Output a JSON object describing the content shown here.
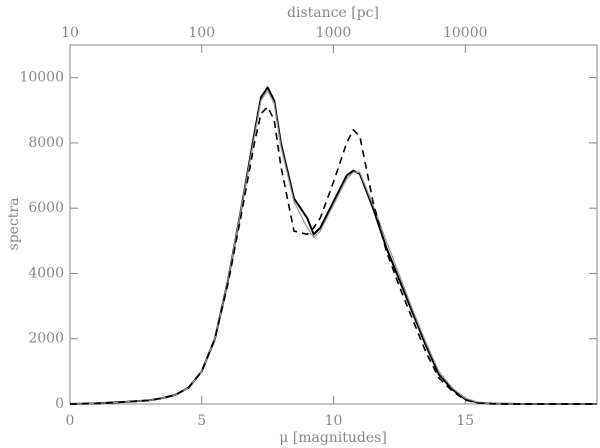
{
  "chart_data": {
    "type": "line",
    "xlabel": "μ  [magnitudes]",
    "ylabel": "spectra",
    "x2label": "distance [pc]",
    "x": [
      0,
      1,
      2,
      3,
      3.5,
      4,
      4.5,
      5,
      5.5,
      6,
      6.5,
      7,
      7.25,
      7.5,
      7.75,
      8,
      8.5,
      9,
      9.25,
      9.5,
      10,
      10.5,
      10.75,
      11,
      11.5,
      12,
      12.5,
      13,
      13.5,
      14,
      14.5,
      15,
      15.5,
      16,
      17,
      18,
      19,
      20
    ],
    "series": [
      {
        "color": "#000000",
        "width": 2,
        "dashed": false,
        "values": [
          0,
          20,
          60,
          110,
          180,
          280,
          500,
          1000,
          2000,
          3800,
          6000,
          8300,
          9400,
          9700,
          9300,
          8000,
          6300,
          5700,
          5200,
          5400,
          6200,
          7000,
          7150,
          7050,
          6000,
          4800,
          3800,
          2800,
          1800,
          900,
          450,
          150,
          40,
          10,
          0,
          0,
          0,
          0
        ]
      },
      {
        "color": "#999999",
        "width": 1.2,
        "dashed": false,
        "values": [
          0,
          20,
          60,
          110,
          180,
          280,
          500,
          1000,
          2000,
          3800,
          6000,
          8200,
          9300,
          9600,
          9200,
          7900,
          6200,
          5400,
          5100,
          5300,
          6100,
          6900,
          7100,
          7100,
          6100,
          5000,
          3950,
          2900,
          1900,
          1000,
          500,
          180,
          50,
          10,
          0,
          0,
          0,
          0
        ]
      },
      {
        "color": "#000000",
        "width": 1.6,
        "dashed": true,
        "values": [
          0,
          20,
          60,
          110,
          180,
          280,
          500,
          1000,
          2000,
          3700,
          5800,
          8000,
          8900,
          9100,
          8700,
          7300,
          5300,
          5200,
          5400,
          5700,
          6800,
          8000,
          8400,
          8200,
          6200,
          4700,
          3600,
          2600,
          1600,
          800,
          400,
          120,
          30,
          5,
          0,
          0,
          0,
          0
        ]
      }
    ],
    "xlim": [
      0,
      20
    ],
    "xticks": [
      0,
      5,
      10,
      15
    ],
    "ylim": [
      0,
      11000
    ],
    "yticks": [
      0,
      2000,
      4000,
      6000,
      8000,
      10000
    ],
    "x2lim": [
      10,
      100000
    ],
    "x2ticks": [
      10,
      100,
      1000,
      10000
    ],
    "x2scale": "log"
  }
}
